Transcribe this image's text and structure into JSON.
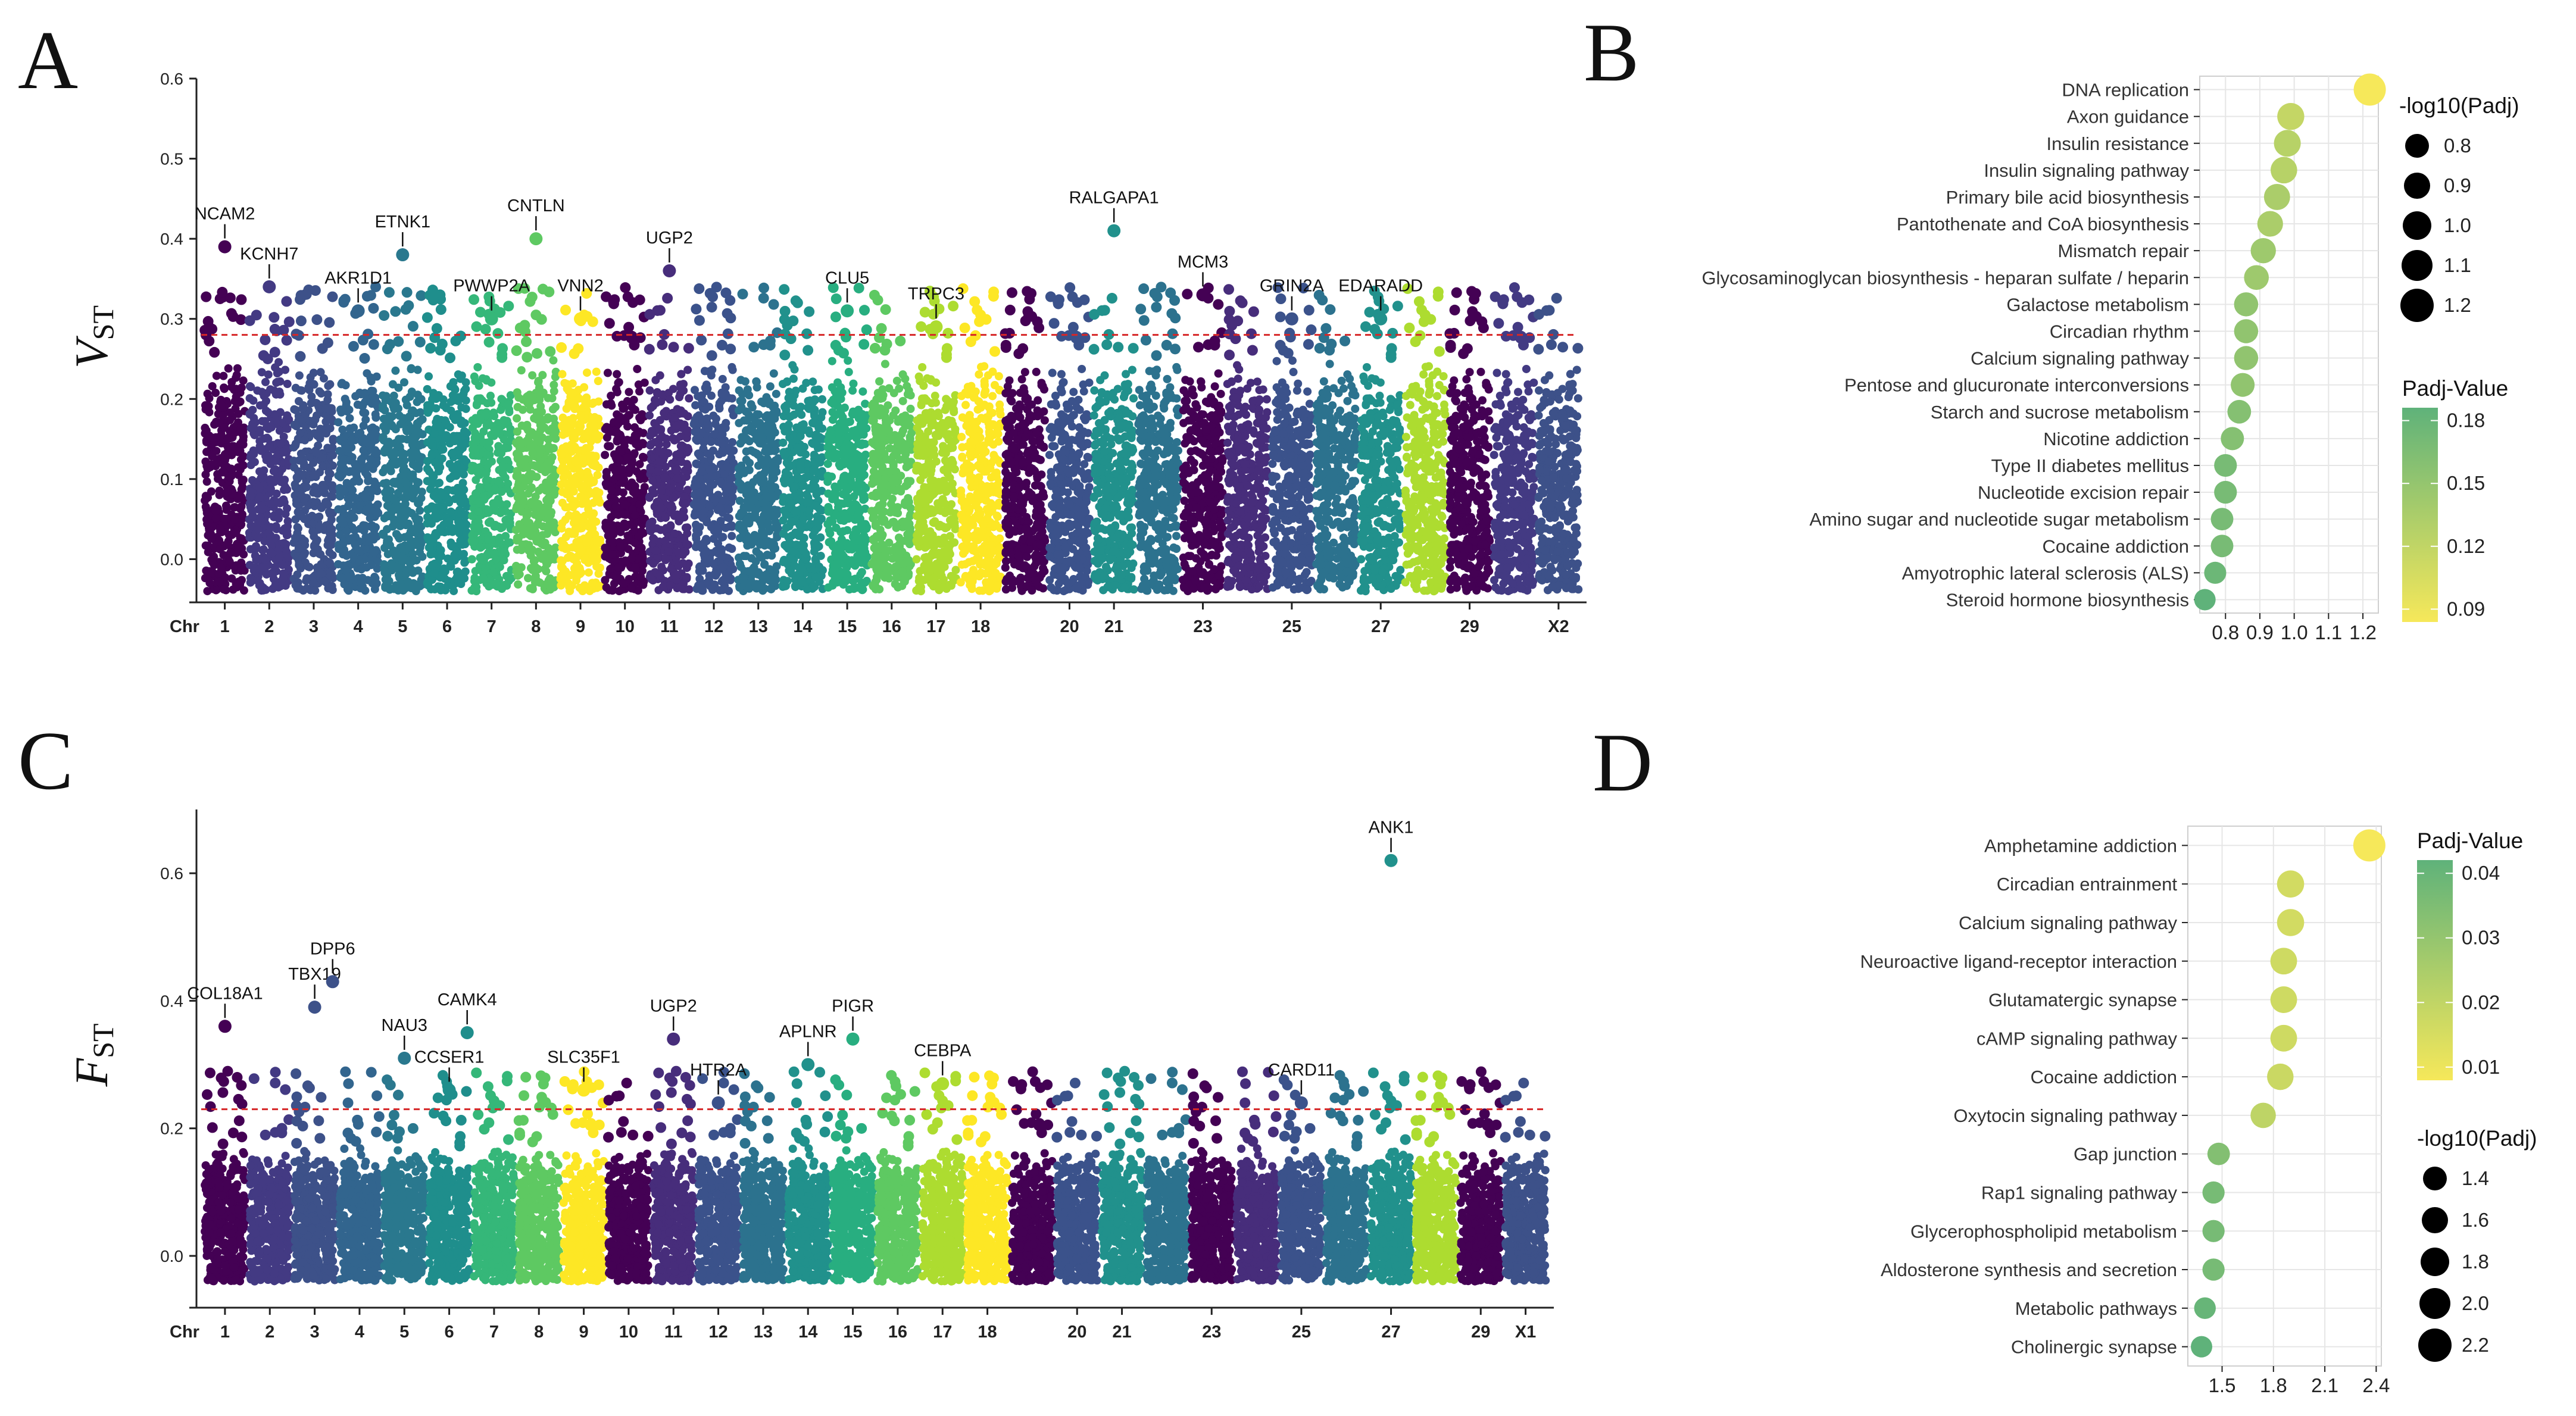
{
  "colors": {
    "threshold": "#d62728",
    "grid": "#e6e6e6",
    "axis": "#222222",
    "panel_bg": "#ffffff",
    "point_dark": "#000000"
  },
  "chart_data": [
    {
      "panel": "A",
      "type": "scatter",
      "title": "",
      "ylabel": "V",
      "ylabel_sub": "ST",
      "ylim": [
        -0.045,
        0.6
      ],
      "yticks": [
        "0.0",
        "0.1",
        "0.2",
        "0.3",
        "0.4",
        "0.5",
        "0.6"
      ],
      "ytick_values": [
        0,
        0.1,
        0.2,
        0.3,
        0.4,
        0.5,
        0.6
      ],
      "threshold": 0.28,
      "x_axis_prefix": "Chr",
      "chromosomes": [
        "1",
        "2",
        "3",
        "4",
        "5",
        "6",
        "7",
        "8",
        "9",
        "10",
        "11",
        "12",
        "13",
        "14",
        "15",
        "16",
        "17",
        "18",
        "19",
        "20",
        "21",
        "22",
        "23",
        "24",
        "25",
        "26",
        "27",
        "28",
        "29",
        "X1",
        "X2"
      ],
      "chromosome_colors": [
        "#440154",
        "#433a83",
        "#3d5189",
        "#32658e",
        "#2a788e",
        "#1f8e8c",
        "#35b779",
        "#5ec962",
        "#fde725",
        "#440154",
        "#472d7b",
        "#3b528b",
        "#2c728e",
        "#21918c",
        "#28ae80",
        "#5ec962",
        "#addc30",
        "#fde725",
        "#440154",
        "#3b528b",
        "#21918c",
        "#2c728e",
        "#440154",
        "#472d7b",
        "#3b528b",
        "#2c728e",
        "#21918c",
        "#addc30",
        "#440154",
        "#433a83",
        "#3d5189"
      ],
      "shown_tick_labels": [
        "1",
        "2",
        "3",
        "4",
        "5",
        "6",
        "7",
        "8",
        "9",
        "10",
        "11",
        "12",
        "13",
        "14",
        "15",
        "16",
        "17",
        "18",
        "20",
        "21",
        "23",
        "25",
        "27",
        "29",
        "X2"
      ],
      "annotated_genes": [
        {
          "gene": "NCAM2",
          "chr": "1",
          "value": 0.39
        },
        {
          "gene": "KCNH7",
          "chr": "2",
          "value": 0.34
        },
        {
          "gene": "AKR1D1",
          "chr": "4",
          "value": 0.31
        },
        {
          "gene": "ETNK1",
          "chr": "5",
          "value": 0.38
        },
        {
          "gene": "PWWP2A",
          "chr": "7",
          "value": 0.3
        },
        {
          "gene": "CNTLN",
          "chr": "8",
          "value": 0.4
        },
        {
          "gene": "VNN2",
          "chr": "9",
          "value": 0.3
        },
        {
          "gene": "UGP2",
          "chr": "11",
          "value": 0.36
        },
        {
          "gene": "CLU5",
          "chr": "15",
          "value": 0.31
        },
        {
          "gene": "TRPC3",
          "chr": "17",
          "value": 0.29
        },
        {
          "gene": "RALGAPA1",
          "chr": "21",
          "value": 0.41
        },
        {
          "gene": "MCM3",
          "chr": "23",
          "value": 0.33
        },
        {
          "gene": "GRIN2A",
          "chr": "25",
          "value": 0.3
        },
        {
          "gene": "EDARADD",
          "chr": "27",
          "value": 0.3
        }
      ]
    },
    {
      "panel": "B",
      "type": "scatter",
      "title": "",
      "xlabel": "",
      "xticks": [
        "0.8",
        "0.9",
        "1.0",
        "1.1",
        "1.2"
      ],
      "xtick_values": [
        0.8,
        0.9,
        1.0,
        1.1,
        1.2
      ],
      "xlim": [
        0.725,
        1.245
      ],
      "terms": [
        "DNA replication",
        "Axon guidance",
        "Insulin resistance",
        "Insulin signaling pathway",
        "Primary bile acid biosynthesis",
        "Pantothenate and CoA biosynthesis",
        "Mismatch repair",
        "Glycosaminoglycan biosynthesis - heparan sulfate / heparin",
        "Galactose metabolism",
        "Circadian rhythm",
        "Calcium signaling pathway",
        "Pentose and glucuronate interconversions",
        "Starch and sucrose metabolism",
        "Nicotine addiction",
        "Type II diabetes mellitus",
        "Nucleotide excision repair",
        "Amino sugar and nucleotide sugar metabolism",
        "Cocaine addiction",
        "Amyotrophic lateral sclerosis (ALS)",
        "Steroid hormone biosynthesis"
      ],
      "neglog10_padj": [
        1.22,
        0.99,
        0.98,
        0.97,
        0.95,
        0.93,
        0.91,
        0.89,
        0.86,
        0.86,
        0.86,
        0.85,
        0.84,
        0.82,
        0.8,
        0.8,
        0.79,
        0.79,
        0.77,
        0.74
      ],
      "padj": [
        0.06,
        0.1,
        0.11,
        0.11,
        0.12,
        0.12,
        0.13,
        0.13,
        0.14,
        0.14,
        0.14,
        0.14,
        0.15,
        0.15,
        0.16,
        0.16,
        0.16,
        0.16,
        0.17,
        0.18
      ],
      "size_legend_title": "-log10(Padj)",
      "size_legend": [
        "0.8",
        "0.9",
        "1.0",
        "1.1",
        "1.2"
      ],
      "color_legend_title": "Padj-Value",
      "color_legend": [
        "0.18",
        "0.15",
        "0.12",
        "0.09"
      ]
    },
    {
      "panel": "C",
      "type": "scatter",
      "title": "",
      "ylabel": "F",
      "ylabel_sub": "ST",
      "ylim": [
        -0.07,
        0.7
      ],
      "yticks": [
        "0.0",
        "0.2",
        "0.4",
        "0.6"
      ],
      "ytick_values": [
        0,
        0.2,
        0.4,
        0.6
      ],
      "threshold": 0.23,
      "x_axis_prefix": "Chr",
      "chromosomes": [
        "1",
        "2",
        "3",
        "4",
        "5",
        "6",
        "7",
        "8",
        "9",
        "10",
        "11",
        "12",
        "13",
        "14",
        "15",
        "16",
        "17",
        "18",
        "19",
        "20",
        "21",
        "22",
        "23",
        "24",
        "25",
        "26",
        "27",
        "28",
        "29",
        "X1"
      ],
      "chromosome_colors": [
        "#440154",
        "#433a83",
        "#3d5189",
        "#32658e",
        "#2a788e",
        "#1f8e8c",
        "#35b779",
        "#5ec962",
        "#fde725",
        "#440154",
        "#472d7b",
        "#3b528b",
        "#2c728e",
        "#21918c",
        "#28ae80",
        "#5ec962",
        "#addc30",
        "#fde725",
        "#440154",
        "#3b528b",
        "#21918c",
        "#2c728e",
        "#440154",
        "#472d7b",
        "#3b528b",
        "#2c728e",
        "#21918c",
        "#addc30",
        "#440154",
        "#3d5189"
      ],
      "shown_tick_labels": [
        "1",
        "2",
        "3",
        "4",
        "5",
        "6",
        "7",
        "8",
        "9",
        "10",
        "11",
        "12",
        "13",
        "14",
        "15",
        "16",
        "17",
        "18",
        "20",
        "21",
        "23",
        "25",
        "27",
        "29",
        "X1"
      ],
      "annotated_genes": [
        {
          "gene": "COL18A1",
          "chr": "1",
          "value": 0.36
        },
        {
          "gene": "TBX19",
          "chr": "3",
          "value": 0.39
        },
        {
          "gene": "DPP6",
          "chr": "3",
          "value": 0.43
        },
        {
          "gene": "NAU3",
          "chr": "5",
          "value": 0.31
        },
        {
          "gene": "CCSER1",
          "chr": "6",
          "value": 0.26
        },
        {
          "gene": "CAMK4",
          "chr": "6",
          "value": 0.35
        },
        {
          "gene": "SLC35F1",
          "chr": "9",
          "value": 0.26
        },
        {
          "gene": "UGP2",
          "chr": "11",
          "value": 0.34
        },
        {
          "gene": "HTR2A",
          "chr": "12",
          "value": 0.24
        },
        {
          "gene": "APLNR",
          "chr": "14",
          "value": 0.3
        },
        {
          "gene": "PIGR",
          "chr": "15",
          "value": 0.34
        },
        {
          "gene": "CEBPA",
          "chr": "17",
          "value": 0.27
        },
        {
          "gene": "CARD11",
          "chr": "25",
          "value": 0.24
        },
        {
          "gene": "ANK1",
          "chr": "27",
          "value": 0.62
        }
      ]
    },
    {
      "panel": "D",
      "type": "scatter",
      "title": "",
      "xlabel": "",
      "xticks": [
        "1.5",
        "1.8",
        "2.1",
        "2.4"
      ],
      "xtick_values": [
        1.5,
        1.8,
        2.1,
        2.4
      ],
      "xlim": [
        1.3,
        2.43
      ],
      "terms": [
        "Amphetamine addiction",
        "Circadian entrainment",
        "Calcium signaling pathway",
        "Neuroactive ligand-receptor interaction",
        "Glutamatergic synapse",
        "cAMP signaling pathway",
        "Cocaine addiction",
        "Oxytocin signaling pathway",
        "Gap junction",
        "Rap1 signaling pathway",
        "Glycerophospholipid metabolism",
        "Aldosterone synthesis and secretion",
        "Metabolic pathways",
        "Cholinergic synapse"
      ],
      "neglog10_padj": [
        2.36,
        1.9,
        1.9,
        1.86,
        1.86,
        1.86,
        1.84,
        1.74,
        1.48,
        1.45,
        1.45,
        1.45,
        1.4,
        1.38
      ],
      "padj": [
        0.004,
        0.013,
        0.013,
        0.014,
        0.014,
        0.014,
        0.015,
        0.018,
        0.033,
        0.036,
        0.036,
        0.036,
        0.04,
        0.042
      ],
      "color_legend_title": "Padj-Value",
      "color_legend": [
        "0.04",
        "0.03",
        "0.02",
        "0.01"
      ],
      "size_legend_title": "-log10(Padj)",
      "size_legend": [
        "1.4",
        "1.6",
        "1.8",
        "2.0",
        "2.2"
      ]
    }
  ]
}
